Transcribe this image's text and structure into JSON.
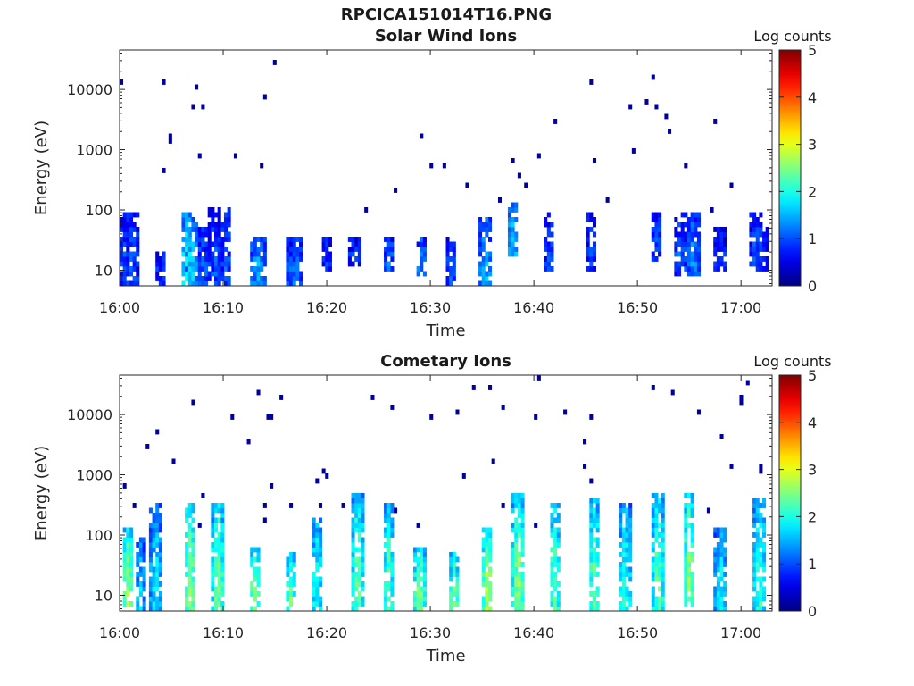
{
  "figure_title": "RPCICA151014T16.PNG",
  "panels": [
    {
      "title": "Solar Wind Ions",
      "colorbar_label": "Log counts"
    },
    {
      "title": "Cometary Ions",
      "colorbar_label": "Log counts"
    }
  ],
  "chart_data": [
    {
      "type": "heatmap",
      "title": "Solar Wind Ions",
      "xlabel": "Time",
      "ylabel": "Energy (eV)",
      "x_ticks": [
        "16:00",
        "16:10",
        "16:20",
        "16:30",
        "16:40",
        "16:50",
        "17:00"
      ],
      "y_ticks": [
        "10",
        "100",
        "1000",
        "10000"
      ],
      "x_range": [
        "16:00",
        "17:03"
      ],
      "y_range": [
        5.5,
        45000
      ],
      "y_scale": "log",
      "colorbar": {
        "label": "Log counts",
        "ticks": [
          "0",
          "1",
          "2",
          "3",
          "4",
          "5"
        ],
        "range": [
          0,
          5
        ],
        "colormap": "jet"
      },
      "events": [
        {
          "t": 0.5,
          "e": [
            6,
            80
          ],
          "level": 0.9
        },
        {
          "t": 1.2,
          "e": [
            6,
            90
          ],
          "level": 1.0
        },
        {
          "t": 4.0,
          "e": [
            6,
            20
          ],
          "level": 0.9
        },
        {
          "t": 6.5,
          "e": [
            6,
            80
          ],
          "level": 1.9
        },
        {
          "t": 7.0,
          "e": [
            6,
            75
          ],
          "level": 1.6
        },
        {
          "t": 8.0,
          "e": [
            6,
            45
          ],
          "level": 1.1
        },
        {
          "t": 9.2,
          "e": [
            6,
            100
          ],
          "level": 1.0
        },
        {
          "t": 10.3,
          "e": [
            6,
            110
          ],
          "level": 1.0
        },
        {
          "t": 13.0,
          "e": [
            6,
            32
          ],
          "level": 1.3
        },
        {
          "t": 13.5,
          "e": [
            6,
            32
          ],
          "level": 1.5
        },
        {
          "t": 16.5,
          "e": [
            6,
            32
          ],
          "level": 1.0
        },
        {
          "t": 17.0,
          "e": [
            6,
            32
          ],
          "level": 1.2
        },
        {
          "t": 20.0,
          "e": [
            10,
            32
          ],
          "level": 0.9
        },
        {
          "t": 22.7,
          "e": [
            12,
            32
          ],
          "level": 0.9
        },
        {
          "t": 26.0,
          "e": [
            10,
            35
          ],
          "level": 1.1
        },
        {
          "t": 29.2,
          "e": [
            8,
            32
          ],
          "level": 1.3
        },
        {
          "t": 32.0,
          "e": [
            6,
            32
          ],
          "level": 1.0
        },
        {
          "t": 35.3,
          "e": [
            6,
            75
          ],
          "level": 1.5
        },
        {
          "t": 38.0,
          "e": [
            20,
            130
          ],
          "level": 1.6
        },
        {
          "t": 41.5,
          "e": [
            10,
            80
          ],
          "level": 0.9
        },
        {
          "t": 45.5,
          "e": [
            10,
            80
          ],
          "level": 0.9
        },
        {
          "t": 51.8,
          "e": [
            15,
            90
          ],
          "level": 1.0
        },
        {
          "t": 54.2,
          "e": [
            8,
            90
          ],
          "level": 1.1
        },
        {
          "t": 55.4,
          "e": [
            8,
            80
          ],
          "level": 1.3
        },
        {
          "t": 58.0,
          "e": [
            10,
            45
          ],
          "level": 0.9
        },
        {
          "t": 61.5,
          "e": [
            12,
            90
          ],
          "level": 1.0
        },
        {
          "t": 62.0,
          "e": [
            10,
            45
          ],
          "level": 0.9
        }
      ]
    },
    {
      "type": "heatmap",
      "title": "Cometary Ions",
      "xlabel": "Time",
      "ylabel": "Energy (eV)",
      "x_ticks": [
        "16:00",
        "16:10",
        "16:20",
        "16:30",
        "16:40",
        "16:50",
        "17:00"
      ],
      "y_ticks": [
        "10",
        "100",
        "1000",
        "10000"
      ],
      "x_range": [
        "16:00",
        "17:03"
      ],
      "y_range": [
        5.5,
        45000
      ],
      "y_scale": "log",
      "colorbar": {
        "label": "Log counts",
        "ticks": [
          "0",
          "1",
          "2",
          "3",
          "4",
          "5"
        ],
        "range": [
          0,
          5
        ],
        "colormap": "jet"
      },
      "events": [
        {
          "t": 0.8,
          "e": [
            6,
            120
          ],
          "level": 2.6
        },
        {
          "t": 2.0,
          "e": [
            6,
            80
          ],
          "level": 1.6
        },
        {
          "t": 3.5,
          "e": [
            6,
            300
          ],
          "level": 1.8
        },
        {
          "t": 6.8,
          "e": [
            6,
            300
          ],
          "level": 2.6
        },
        {
          "t": 9.5,
          "e": [
            6,
            300
          ],
          "level": 2.5
        },
        {
          "t": 13.0,
          "e": [
            6,
            60
          ],
          "level": 2.5
        },
        {
          "t": 16.5,
          "e": [
            6,
            45
          ],
          "level": 2.4
        },
        {
          "t": 19.0,
          "e": [
            6,
            180
          ],
          "level": 2.0
        },
        {
          "t": 23.0,
          "e": [
            6,
            450
          ],
          "level": 2.4
        },
        {
          "t": 26.0,
          "e": [
            6,
            300
          ],
          "level": 2.2
        },
        {
          "t": 29.0,
          "e": [
            6,
            60
          ],
          "level": 2.6
        },
        {
          "t": 32.3,
          "e": [
            6,
            45
          ],
          "level": 2.4
        },
        {
          "t": 35.5,
          "e": [
            6,
            120
          ],
          "level": 2.7
        },
        {
          "t": 38.5,
          "e": [
            6,
            450
          ],
          "level": 2.6
        },
        {
          "t": 42.0,
          "e": [
            6,
            300
          ],
          "level": 2.3
        },
        {
          "t": 45.8,
          "e": [
            6,
            400
          ],
          "level": 2.3
        },
        {
          "t": 48.8,
          "e": [
            6,
            300
          ],
          "level": 2.1
        },
        {
          "t": 52.0,
          "e": [
            6,
            450
          ],
          "level": 2.4
        },
        {
          "t": 55.0,
          "e": [
            6,
            450
          ],
          "level": 2.6
        },
        {
          "t": 58.0,
          "e": [
            6,
            120
          ],
          "level": 1.9
        },
        {
          "t": 61.8,
          "e": [
            6,
            400
          ],
          "level": 2.2
        }
      ]
    }
  ]
}
